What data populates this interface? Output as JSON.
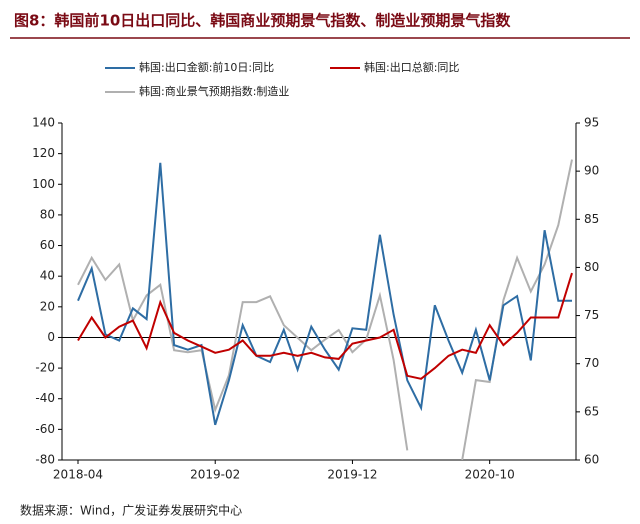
{
  "chart_data": {
    "type": "line",
    "title": "图8：韩国前10日出口同比、韩国商业预期景气指数、制造业预期景气指数",
    "source": "数据来源：Wind，广发证券发展研究中心",
    "categories": [
      "2018-04",
      null,
      null,
      null,
      null,
      null,
      null,
      null,
      null,
      null,
      "2019-02",
      null,
      null,
      null,
      null,
      null,
      null,
      null,
      null,
      null,
      "2019-12",
      null,
      null,
      null,
      null,
      null,
      null,
      null,
      null,
      null,
      "2020-10",
      null,
      null,
      null,
      null,
      null,
      null
    ],
    "series": [
      {
        "name": "韩国:出口金额:前10日:同比",
        "color": "#2e6da4",
        "values": [
          24,
          45,
          2,
          -2,
          19,
          12,
          114,
          -5,
          -8,
          -5,
          -57,
          -28,
          8,
          -12,
          -16,
          5,
          -21,
          7,
          -8,
          -21,
          6,
          5,
          67,
          15,
          -28,
          -46,
          21,
          -2,
          -23,
          5,
          -28,
          21,
          27,
          -15,
          70,
          24,
          24
        ]
      },
      {
        "name": "韩国:出口总额:同比",
        "color": "#c00000",
        "values": [
          -2,
          13,
          0,
          7,
          11,
          -7,
          23,
          3,
          -2,
          -6,
          -10,
          -8,
          -2,
          -12,
          -12,
          -10,
          -12,
          -10,
          -13,
          -14,
          -4,
          -2,
          0,
          5,
          -25,
          -27,
          -20,
          -12,
          -8,
          -10,
          8,
          -5,
          3,
          13,
          13,
          13,
          42
        ]
      },
      {
        "name": "韩国:商业景气预期指数:制造业",
        "color": "#b0b0b0",
        "axis": "y2",
        "values": [
          78.2,
          81,
          78.7,
          80.3,
          74.5,
          77.1,
          78.2,
          71.4,
          71.2,
          71.4,
          65.2,
          68.8,
          76.4,
          76.4,
          77,
          74,
          72.7,
          71.4,
          72.5,
          73.5,
          71.2,
          72.5,
          77.1,
          70.4,
          61,
          null,
          null,
          null,
          60,
          68.3,
          68.1,
          76.6,
          81,
          77.5,
          80.3,
          84.4,
          91.2
        ]
      }
    ],
    "ylim": [
      -80,
      140
    ],
    "yticks": [
      -80,
      -60,
      -40,
      -20,
      0,
      20,
      40,
      60,
      80,
      100,
      120,
      140
    ],
    "y2lim": [
      60,
      95
    ],
    "y2ticks": [
      60,
      65,
      70,
      75,
      80,
      85,
      90,
      95
    ]
  }
}
